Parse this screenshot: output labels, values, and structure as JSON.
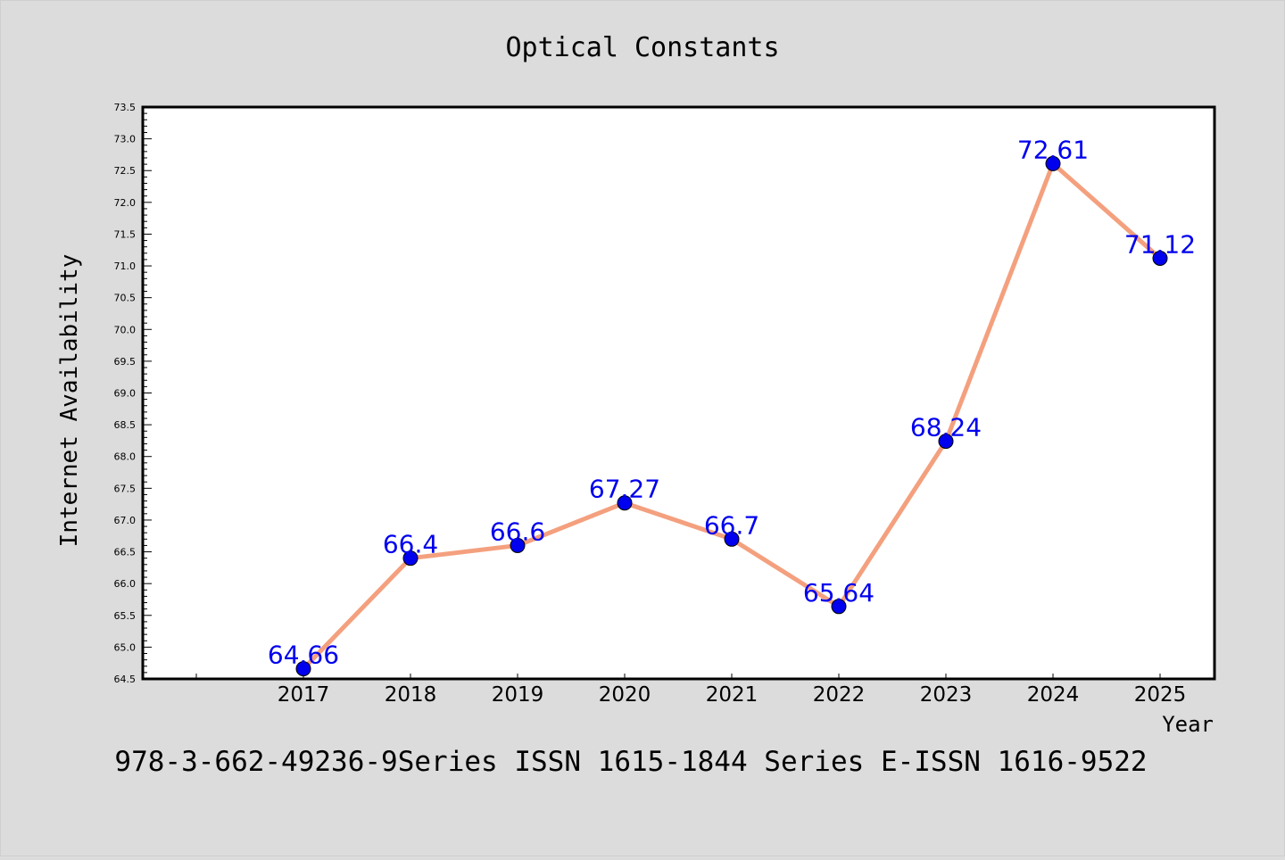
{
  "chart_data": {
    "type": "line",
    "title": "Optical Constants",
    "xlabel": "Year",
    "ylabel": "Internet Availability",
    "footer": "978-3-662-49236-9Series ISSN 1615-1844 Series E-ISSN 1616-9522",
    "categories": [
      "2017",
      "2018",
      "2019",
      "2020",
      "2021",
      "2022",
      "2023",
      "2024",
      "2025"
    ],
    "series": [
      {
        "values": [
          64.66,
          66.4,
          66.6,
          67.27,
          66.7,
          65.64,
          68.24,
          72.61,
          71.12
        ]
      }
    ],
    "point_labels": [
      "64.66",
      "66.4",
      "66.6",
      "67.27",
      "66.7",
      "65.64",
      "68.24",
      "72.61",
      "71.12"
    ],
    "ylim": [
      64.5,
      73.5
    ],
    "ytick_labels": [
      "64.5",
      "65.0",
      "65.5",
      "66.0",
      "66.5",
      "67.0",
      "67.5",
      "68.0",
      "68.5",
      "69.0",
      "69.5",
      "70.0",
      "70.5",
      "71.0",
      "71.5",
      "72.0",
      "72.5",
      "73.0",
      "73.5"
    ],
    "grid": false,
    "legend": false,
    "colors": {
      "background": "#dcdcdc",
      "plot_background": "#ffffff",
      "line": "#f4a07e",
      "marker": "#0000ee",
      "label": "#0000ee",
      "axis": "#000000"
    }
  }
}
